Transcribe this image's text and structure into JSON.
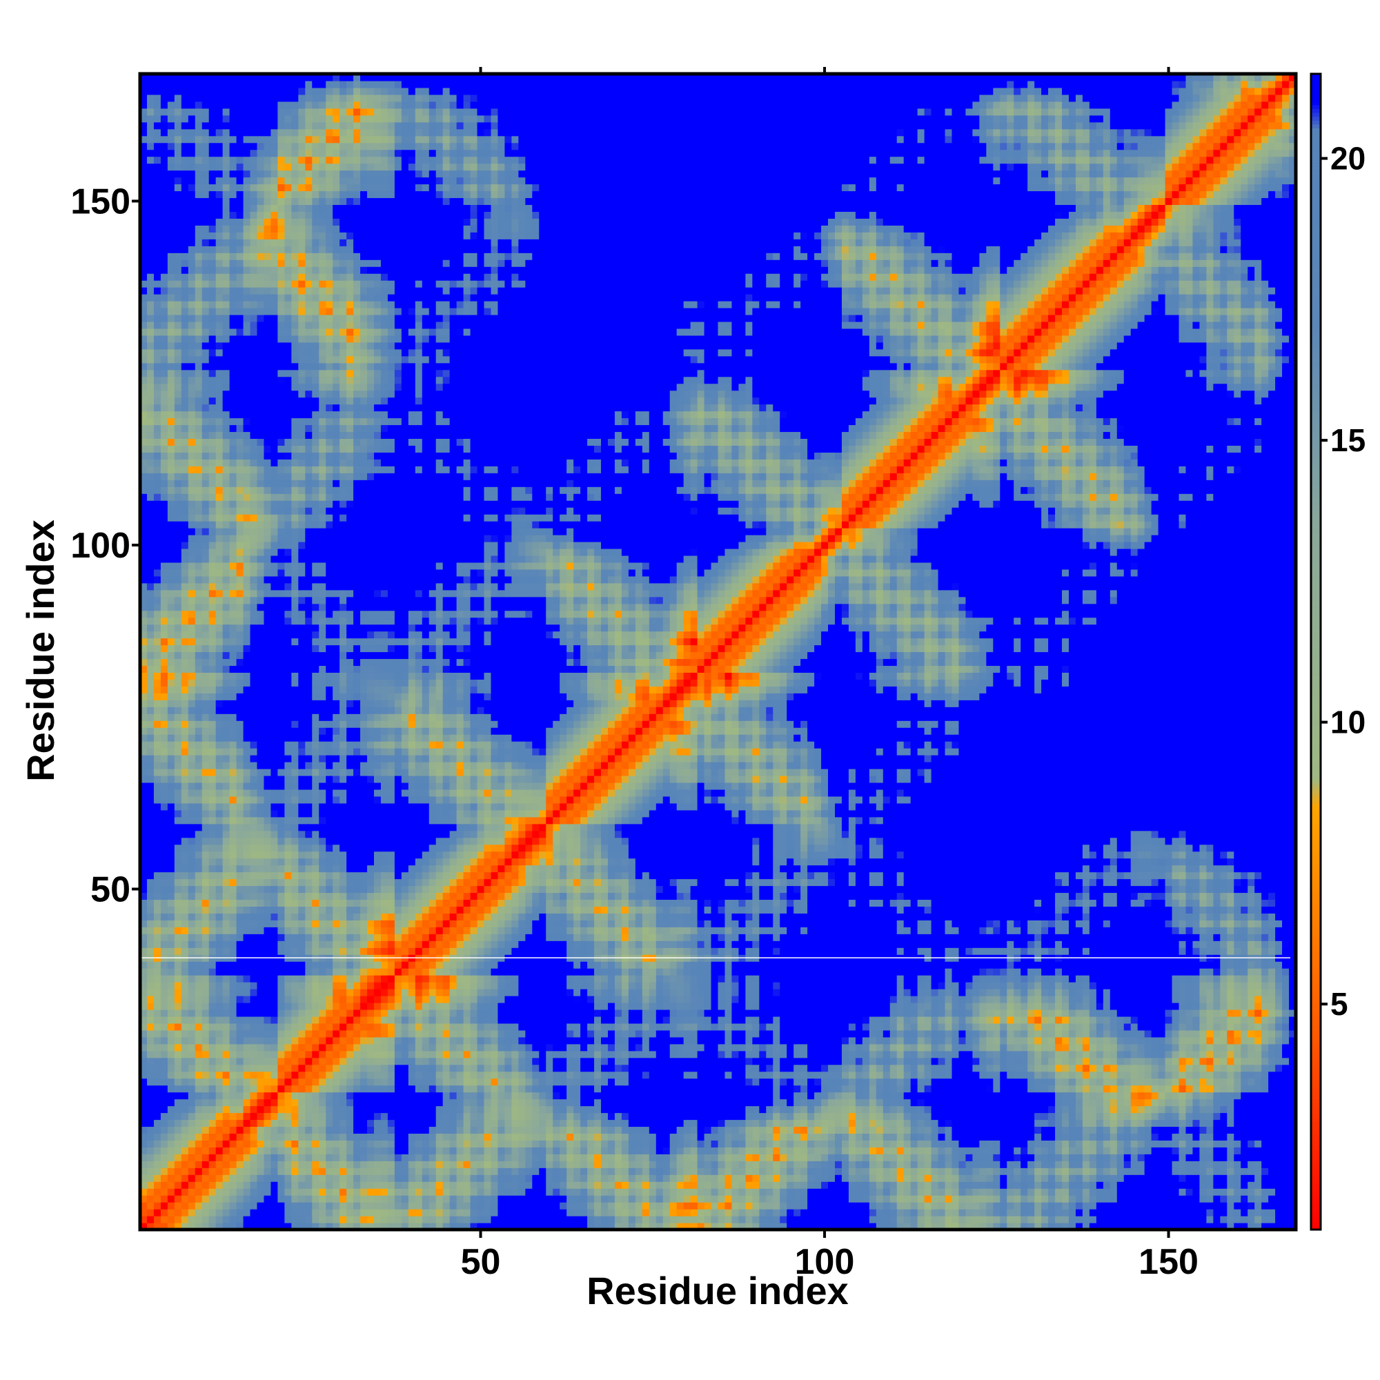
{
  "chart_data": {
    "type": "heatmap",
    "title": "",
    "xlabel": "Residue index",
    "ylabel": "Residue index",
    "n_residues": 168,
    "xlim": [
      1,
      168
    ],
    "ylim": [
      1,
      168
    ],
    "x_ticks": [
      50,
      100,
      150
    ],
    "y_ticks": [
      50,
      100,
      150
    ],
    "colorbar": {
      "ticks": [
        5,
        10,
        15,
        20
      ],
      "range": [
        1,
        21.5
      ],
      "stops": [
        {
          "value": 1,
          "color": "#ff0000"
        },
        {
          "value": 4.5,
          "color": "#ff5a00"
        },
        {
          "value": 8.5,
          "color": "#ffa500"
        },
        {
          "value": 9,
          "color": "#9fb883"
        },
        {
          "value": 13.5,
          "color": "#8aa89b"
        },
        {
          "value": 17,
          "color": "#5b87b8"
        },
        {
          "value": 20.5,
          "color": "#5684b9"
        },
        {
          "value": 21,
          "color": "#0000ff"
        }
      ]
    },
    "structure": {
      "helices": [
        [
          2,
          16
        ],
        [
          21,
          33
        ],
        [
          38,
          55
        ],
        [
          60,
          77
        ],
        [
          82,
          98
        ],
        [
          103,
          121
        ],
        [
          126,
          145
        ],
        [
          150,
          165
        ]
      ],
      "termini_far_residues": [
        [
          155,
          168
        ],
        [
          1,
          6
        ]
      ],
      "horizontal_artifact_row": 40
    }
  }
}
